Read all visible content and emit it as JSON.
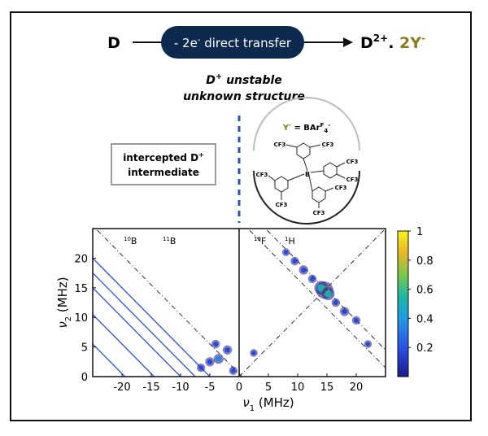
{
  "scheme": {
    "reactant": "D",
    "transfer_label": "- 2e",
    "transfer_sup": "-",
    "transfer_rest": " direct transfer",
    "product_main": "D",
    "product_sup": "2+",
    "product_dot": ". ",
    "product_anion": "2Y",
    "product_anion_sup": "-",
    "unstable_line1_pre": "D",
    "unstable_line1_sup": "+",
    "unstable_line1_post": " unstable",
    "unstable_line2": "unknown structure",
    "intercepted_line1_pre": "intercepted D",
    "intercepted_line1_sup": "+",
    "intercepted_line2": "intermediate",
    "anion_def_pre": "Y",
    "anion_def_sup1": "-",
    "anion_def_mid": " = BAr",
    "anion_def_sup2": "F",
    "anion_def_sub": "4",
    "anion_def_sup3": "-",
    "boron_label": "B",
    "cf3_labels": [
      "CF3",
      "CF3",
      "CF3",
      "CF3",
      "CF3",
      "CF3",
      "CF3",
      "CF3"
    ]
  },
  "colors": {
    "pill": "#0d2a4e",
    "dashed_line": "#2456a8",
    "olive": "#8a7d1e",
    "blue_line": "#2e4fe6"
  },
  "chart_data": {
    "type": "heatmap",
    "title": "",
    "xlabel": "ν1 (MHz)",
    "xlabel_sym": "ν",
    "xlabel_sub": "1",
    "xlabel_unit": " (MHz)",
    "ylabel_sym": "ν",
    "ylabel_sub": "2",
    "ylabel_unit": " (MHz)",
    "xlim": [
      -25,
      25
    ],
    "ylim": [
      0,
      25
    ],
    "x_ticks": [
      -20,
      -15,
      -10,
      -5,
      0,
      5,
      10,
      15,
      20
    ],
    "y_ticks": [
      0,
      5,
      10,
      15,
      20
    ],
    "colorbar_ticks": [
      "1",
      "0.8",
      "0.6",
      "0.4",
      "0.2"
    ],
    "colorbar_values": [
      1,
      0.8,
      0.6,
      0.4,
      0.2
    ],
    "colorbar_range": [
      0,
      1
    ],
    "nuclei_labels": [
      {
        "iso": "10",
        "el": "B"
      },
      {
        "iso": "11",
        "el": "B"
      },
      {
        "iso": "19",
        "el": "F"
      },
      {
        "iso": "1",
        "el": "H"
      }
    ],
    "anti_diagonals_left": [
      -5.0,
      -7.5,
      -10.0,
      -14.5,
      -19.5
    ],
    "dashdot_left": [
      -24.5
    ],
    "dashdot_right": [
      26.5,
      29.5
    ],
    "diagonal_right": true,
    "peaks": [
      {
        "x": -3.5,
        "y": 3.0,
        "i": 0.35
      },
      {
        "x": -5.0,
        "y": 2.5,
        "i": 0.3
      },
      {
        "x": -2.0,
        "y": 4.5,
        "i": 0.3
      },
      {
        "x": -4.0,
        "y": 5.5,
        "i": 0.25
      },
      {
        "x": -6.5,
        "y": 1.5,
        "i": 0.25
      },
      {
        "x": -1.0,
        "y": 1.0,
        "i": 0.25
      },
      {
        "x": 2.5,
        "y": 4.0,
        "i": 0.2
      },
      {
        "x": 14.6,
        "y": 14.6,
        "i": 0.85
      },
      {
        "x": 14.0,
        "y": 15.0,
        "i": 0.6
      },
      {
        "x": 15.2,
        "y": 14.0,
        "i": 0.55
      },
      {
        "x": 11.0,
        "y": 18.0,
        "i": 0.3
      },
      {
        "x": 9.5,
        "y": 19.5,
        "i": 0.25
      },
      {
        "x": 18.0,
        "y": 11.0,
        "i": 0.3
      },
      {
        "x": 20.0,
        "y": 9.5,
        "i": 0.25
      },
      {
        "x": 16.5,
        "y": 12.5,
        "i": 0.25
      },
      {
        "x": 12.5,
        "y": 16.5,
        "i": 0.25
      },
      {
        "x": 22.0,
        "y": 5.5,
        "i": 0.2
      },
      {
        "x": 8.0,
        "y": 21.0,
        "i": 0.2
      }
    ]
  }
}
